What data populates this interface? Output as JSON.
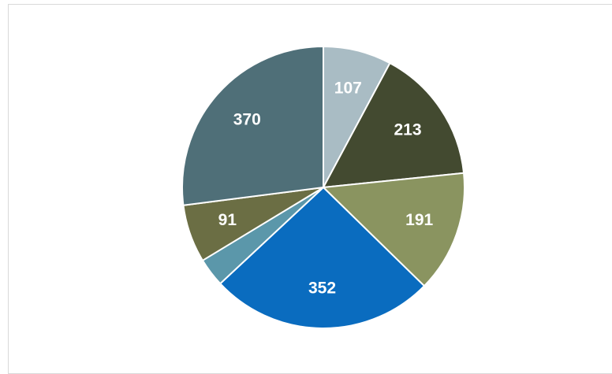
{
  "chart_data": {
    "type": "pie",
    "values": [
      107,
      213,
      191,
      352,
      45,
      91,
      370
    ],
    "value_labels": [
      "107",
      "213",
      "191",
      "352",
      null,
      "91",
      "370"
    ],
    "colors": [
      "#a9bcc4",
      "#434a30",
      "#8a9460",
      "#0a6cbf",
      "#5b97aa",
      "#6b6e44",
      "#4f6f78"
    ]
  }
}
